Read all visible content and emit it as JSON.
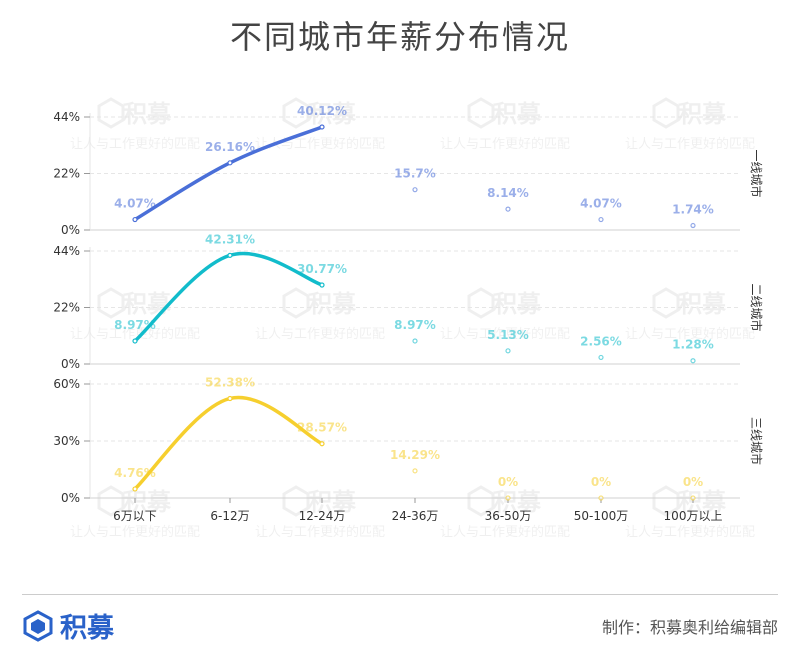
{
  "title": "不同城市年薪分布情况",
  "watermark": {
    "brand": "积募",
    "slogan": "让人与工作更好的匹配"
  },
  "footer": {
    "logo_text": "积募",
    "credit": "制作：积募奥利给编辑部"
  },
  "colors": {
    "tier1": "#4a6fd8",
    "tier2": "#12bccb",
    "tier3": "#f6cf2e",
    "brand": "#2a62c9"
  },
  "chart_data": [
    {
      "type": "line",
      "facet": "一线城市",
      "categories": [
        "6万以下",
        "6-12万",
        "12-24万",
        "24-36万",
        "36-50万",
        "50-100万",
        "100万以上"
      ],
      "values": [
        4.07,
        26.16,
        40.12,
        15.7,
        8.14,
        4.07,
        1.74
      ],
      "labels": [
        "4.07%",
        "26.16%",
        "40.12%",
        "15.7%",
        "8.14%",
        "4.07%",
        "1.74%"
      ],
      "yticks": [
        "0%",
        "22%",
        "44%"
      ],
      "ylim": [
        0,
        44
      ],
      "color": "#4a6fd8"
    },
    {
      "type": "line",
      "facet": "二线城市",
      "categories": [
        "6万以下",
        "6-12万",
        "12-24万",
        "24-36万",
        "36-50万",
        "50-100万",
        "100万以上"
      ],
      "values": [
        8.97,
        42.31,
        30.77,
        8.97,
        5.13,
        2.56,
        1.28
      ],
      "labels": [
        "8.97%",
        "42.31%",
        "30.77%",
        "8.97%",
        "5.13%",
        "2.56%",
        "1.28%"
      ],
      "yticks": [
        "0%",
        "22%",
        "44%"
      ],
      "ylim": [
        0,
        44
      ],
      "color": "#12bccb"
    },
    {
      "type": "line",
      "facet": "三线城市",
      "categories": [
        "6万以下",
        "6-12万",
        "12-24万",
        "24-36万",
        "36-50万",
        "50-100万",
        "100万以上"
      ],
      "values": [
        4.76,
        52.38,
        28.57,
        14.29,
        0,
        0,
        0
      ],
      "labels": [
        "4.76%",
        "52.38%",
        "28.57%",
        "14.29%",
        "0%",
        "0%",
        "0%"
      ],
      "yticks": [
        "0%",
        "30%",
        "60%"
      ],
      "ylim": [
        0,
        60
      ],
      "color": "#f6cf2e"
    }
  ]
}
